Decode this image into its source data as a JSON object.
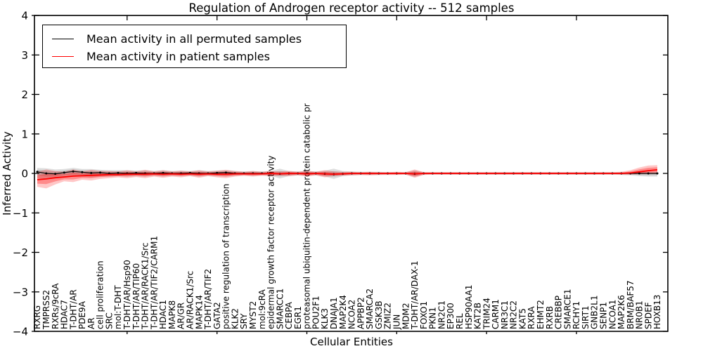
{
  "title": "Regulation of Androgen receptor activity -- 512 samples",
  "axes": {
    "ylabel": "Inferred Activity",
    "xlabel": "Cellular Entities"
  },
  "legend": {
    "items": [
      {
        "label": "Mean activity in all permuted samples",
        "color": "#000000"
      },
      {
        "label": "Mean activity in patient samples",
        "color": "#ff0000"
      }
    ]
  },
  "chart_data": {
    "type": "line",
    "title": "Regulation of Androgen receptor activity -- 512 samples",
    "xlabel": "Cellular Entities",
    "ylabel": "Inferred Activity",
    "ylim": [
      -4,
      4
    ],
    "yticks": [
      -4,
      -3,
      -2,
      -1,
      0,
      1,
      2,
      3,
      4
    ],
    "grid": false,
    "legend_position": "upper left",
    "band_note": "shaded regions are confidence bands around each mean line",
    "colors": {
      "permuted_line": "#000000",
      "permuted_band": "rgba(0,0,0,0.13)",
      "patient_line": "#ff0000",
      "patient_band": "rgba(255,0,0,0.24)"
    },
    "categories": [
      "RXRG",
      "TMPRSS2",
      "RXRs/9cRA",
      "HDAC7",
      "T-DHT/AR",
      "PDE9A",
      "AR",
      "cell proliferation",
      "SRC",
      "mol:T-DHT",
      "T-DHT/AR/Hsp90",
      "T-DHT/AR/TIP60",
      "T-DHT/AR/RACK1/Src",
      "T-DHT/AR/TIF2/CARM1",
      "HDAC1",
      "MAPK8",
      "AR/GR",
      "AR/RACK1/Src",
      "MAPK14",
      "T-DHT/AR/TIF2",
      "GATA2",
      "positive regulation of transcription",
      "KLK2",
      "SRY",
      "MYST2",
      "mol:9cRA",
      "epidermal growth factor receptor activity",
      "SMARCC1",
      "CEBPA",
      "EGR1",
      "proteasomal ubiquitin-dependent protein catabolic pr",
      "POU2F1",
      "KLK3",
      "DNAJA1",
      "MAP2K4",
      "NCOA2",
      "APPBP2",
      "SMARCA2",
      "GSK3B",
      "ZMIZ2",
      "JUN",
      "MDM2",
      "T-DHT/AR/DAX-1",
      "FOXO1",
      "PKN1",
      "NR2C1",
      "EP300",
      "REL",
      "HSP90AA1",
      "KAT2B",
      "TRIM24",
      "CARM1",
      "NR3C1",
      "NR2C2",
      "KAT5",
      "RXRA",
      "EHMT2",
      "RXRB",
      "CREBBP",
      "SMARCE1",
      "RCHY1",
      "SIRT1",
      "GNB2L1",
      "SENP1",
      "NCOA1",
      "MAP2K6",
      "BRM/BAF57",
      "NR0B1",
      "SPDEF",
      "HOXB13"
    ],
    "series": [
      {
        "name": "Mean activity in all permuted samples",
        "color": "#000000",
        "markers": true,
        "mean": [
          0.04,
          0.0,
          -0.01,
          0.02,
          0.05,
          0.03,
          0.01,
          0.02,
          0.0,
          0.01,
          0.0,
          0.01,
          0.0,
          0.0,
          0.01,
          0.0,
          0.0,
          0.01,
          0.0,
          0.0,
          0.01,
          0.02,
          0.0,
          0.0,
          0.0,
          0.0,
          0.0,
          -0.01,
          0.0,
          0.0,
          0.0,
          0.0,
          -0.01,
          -0.02,
          -0.01,
          0.0,
          0.0,
          0.0,
          0.0,
          0.0,
          0.0,
          0.0,
          -0.01,
          0.0,
          0.0,
          0.0,
          0.0,
          0.0,
          0.0,
          0.0,
          0.0,
          0.0,
          0.0,
          0.0,
          0.0,
          0.0,
          0.0,
          0.0,
          0.0,
          0.0,
          0.0,
          0.0,
          0.0,
          0.0,
          0.0,
          0.0,
          0.0,
          0.0,
          0.0,
          0.0
        ],
        "lo": [
          -0.12,
          -0.15,
          -0.12,
          -0.09,
          -0.08,
          -0.08,
          -0.1,
          -0.08,
          -0.08,
          -0.07,
          -0.08,
          -0.07,
          -0.08,
          -0.06,
          -0.08,
          -0.06,
          -0.07,
          -0.06,
          -0.08,
          -0.06,
          -0.07,
          -0.08,
          -0.06,
          -0.05,
          -0.06,
          -0.05,
          -0.06,
          -0.13,
          -0.07,
          -0.05,
          -0.06,
          -0.05,
          -0.08,
          -0.14,
          -0.07,
          -0.05,
          -0.04,
          -0.04,
          -0.04,
          -0.03,
          -0.03,
          -0.03,
          -0.09,
          -0.03,
          -0.03,
          -0.03,
          -0.03,
          -0.03,
          -0.03,
          -0.03,
          -0.03,
          -0.03,
          -0.03,
          -0.03,
          -0.03,
          -0.03,
          -0.03,
          -0.03,
          -0.03,
          -0.03,
          -0.03,
          -0.03,
          -0.03,
          -0.03,
          -0.03,
          -0.04,
          -0.05,
          -0.07,
          -0.08,
          -0.08
        ],
        "hi": [
          0.14,
          0.13,
          0.1,
          0.11,
          0.14,
          0.11,
          0.11,
          0.09,
          0.08,
          0.08,
          0.08,
          0.07,
          0.08,
          0.06,
          0.08,
          0.06,
          0.07,
          0.06,
          0.08,
          0.06,
          0.07,
          0.08,
          0.06,
          0.05,
          0.06,
          0.05,
          0.06,
          0.12,
          0.06,
          0.05,
          0.06,
          0.05,
          0.07,
          0.12,
          0.06,
          0.05,
          0.04,
          0.04,
          0.04,
          0.03,
          0.03,
          0.03,
          0.08,
          0.03,
          0.03,
          0.03,
          0.03,
          0.03,
          0.03,
          0.03,
          0.03,
          0.03,
          0.03,
          0.03,
          0.03,
          0.03,
          0.03,
          0.03,
          0.03,
          0.03,
          0.03,
          0.03,
          0.03,
          0.03,
          0.03,
          0.03,
          0.03,
          0.04,
          0.04,
          0.04
        ]
      },
      {
        "name": "Mean activity in patient samples",
        "color": "#ff0000",
        "markers": false,
        "mean": [
          -0.16,
          -0.14,
          -0.11,
          -0.09,
          -0.07,
          -0.06,
          -0.05,
          -0.04,
          -0.03,
          -0.03,
          -0.02,
          -0.02,
          -0.02,
          -0.01,
          -0.02,
          -0.01,
          -0.02,
          -0.01,
          -0.02,
          -0.01,
          -0.02,
          -0.02,
          -0.01,
          -0.01,
          -0.01,
          -0.01,
          0.0,
          -0.01,
          0.0,
          0.0,
          -0.01,
          0.0,
          -0.01,
          -0.02,
          -0.01,
          0.0,
          0.0,
          0.0,
          0.0,
          0.0,
          0.0,
          0.0,
          -0.01,
          0.0,
          0.0,
          0.0,
          0.0,
          0.0,
          0.0,
          0.0,
          0.0,
          0.0,
          0.0,
          0.0,
          0.0,
          0.0,
          0.0,
          0.0,
          0.0,
          0.0,
          0.0,
          0.0,
          0.0,
          0.0,
          0.0,
          0.0,
          0.01,
          0.04,
          0.07,
          0.09
        ],
        "lo": [
          -0.34,
          -0.38,
          -0.28,
          -0.2,
          -0.22,
          -0.16,
          -0.18,
          -0.14,
          -0.12,
          -0.1,
          -0.12,
          -0.09,
          -0.12,
          -0.08,
          -0.11,
          -0.08,
          -0.1,
          -0.07,
          -0.11,
          -0.07,
          -0.1,
          -0.12,
          -0.08,
          -0.06,
          -0.08,
          -0.06,
          -0.07,
          -0.06,
          -0.07,
          -0.05,
          -0.08,
          -0.05,
          -0.1,
          -0.07,
          -0.06,
          -0.05,
          -0.04,
          -0.05,
          -0.04,
          -0.04,
          -0.04,
          -0.03,
          -0.11,
          -0.04,
          -0.03,
          -0.03,
          -0.03,
          -0.03,
          -0.03,
          -0.03,
          -0.03,
          -0.03,
          -0.03,
          -0.03,
          -0.03,
          -0.03,
          -0.03,
          -0.03,
          -0.03,
          -0.03,
          -0.03,
          -0.03,
          -0.03,
          -0.03,
          -0.03,
          -0.03,
          -0.03,
          -0.02,
          -0.02,
          -0.02
        ],
        "hi": [
          0.04,
          0.1,
          0.06,
          0.04,
          0.1,
          0.05,
          0.09,
          0.06,
          0.06,
          0.05,
          0.08,
          0.05,
          0.09,
          0.05,
          0.08,
          0.05,
          0.07,
          0.05,
          0.08,
          0.05,
          0.07,
          0.09,
          0.06,
          0.04,
          0.06,
          0.04,
          0.06,
          0.05,
          0.06,
          0.04,
          0.07,
          0.04,
          0.08,
          0.05,
          0.04,
          0.04,
          0.03,
          0.04,
          0.03,
          0.03,
          0.04,
          0.03,
          0.1,
          0.03,
          0.03,
          0.03,
          0.03,
          0.03,
          0.03,
          0.03,
          0.03,
          0.03,
          0.03,
          0.03,
          0.03,
          0.03,
          0.03,
          0.03,
          0.03,
          0.03,
          0.03,
          0.03,
          0.03,
          0.03,
          0.03,
          0.04,
          0.08,
          0.15,
          0.2,
          0.21
        ]
      }
    ]
  }
}
